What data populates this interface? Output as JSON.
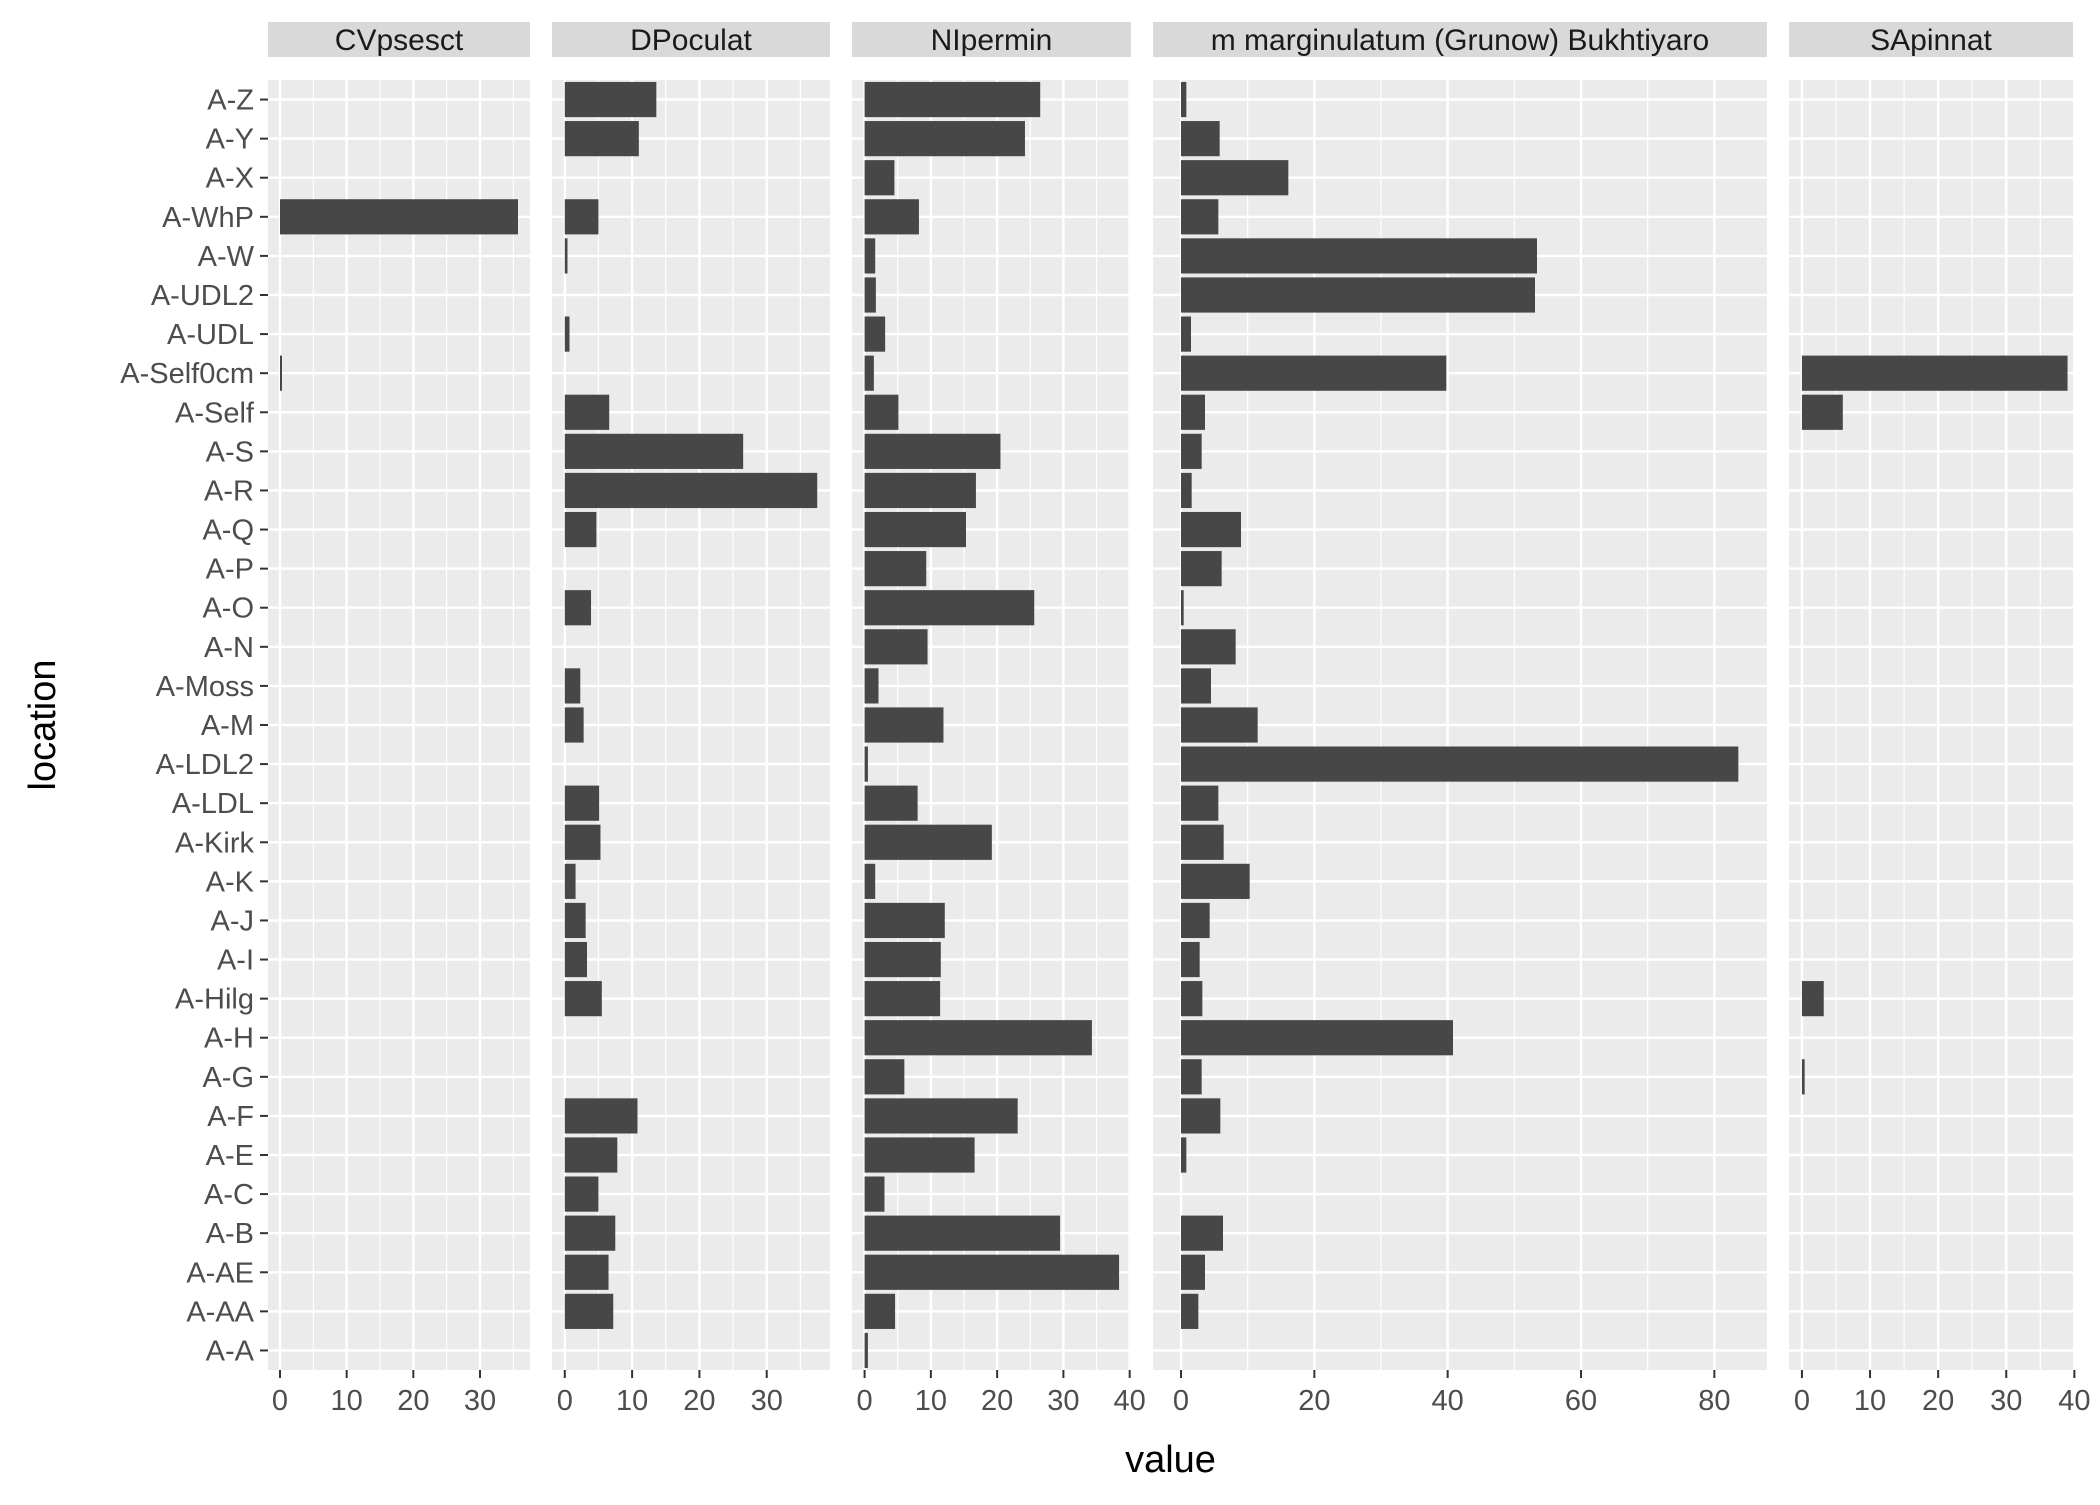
{
  "chart_data": {
    "type": "bar",
    "orientation": "horizontal",
    "xlabel": "value",
    "ylabel": "location",
    "categories": [
      "A-Z",
      "A-Y",
      "A-X",
      "A-WhP",
      "A-W",
      "A-UDL2",
      "A-UDL",
      "A-Self0cm",
      "A-Self",
      "A-S",
      "A-R",
      "A-Q",
      "A-P",
      "A-O",
      "A-N",
      "A-Moss",
      "A-M",
      "A-LDL2",
      "A-LDL",
      "A-Kirk",
      "A-K",
      "A-J",
      "A-I",
      "A-Hilg",
      "A-H",
      "A-G",
      "A-F",
      "A-E",
      "A-C",
      "A-B",
      "A-AE",
      "A-AA",
      "A-A"
    ],
    "grid": true,
    "colors": {
      "bar": "#474747",
      "panel_background": "#ebebeb",
      "grid_line": "#ffffff",
      "strip_background": "#d9d9d9",
      "text": "#4d4d4d",
      "axis_title": "#000000"
    },
    "panels": [
      {
        "strip": "CVpsesct",
        "xlim": [
          -1.8,
          37.5
        ],
        "ticks": [
          0,
          10,
          20,
          30
        ],
        "values": [
          null,
          null,
          null,
          35.7,
          null,
          null,
          null,
          0.3,
          null,
          null,
          null,
          null,
          null,
          null,
          null,
          null,
          null,
          null,
          null,
          null,
          null,
          null,
          null,
          null,
          null,
          null,
          null,
          null,
          null,
          null,
          null,
          null,
          null
        ]
      },
      {
        "strip": "DPoculat",
        "xlim": [
          -1.9,
          39.4
        ],
        "ticks": [
          0,
          10,
          20,
          30
        ],
        "values": [
          13.6,
          11.0,
          null,
          5.0,
          0.4,
          null,
          0.7,
          null,
          6.6,
          26.5,
          37.5,
          4.7,
          null,
          3.9,
          null,
          2.3,
          2.8,
          null,
          5.1,
          5.3,
          1.6,
          3.1,
          3.3,
          5.5,
          null,
          null,
          10.8,
          7.8,
          5.0,
          7.5,
          6.5,
          7.2,
          null
        ]
      },
      {
        "strip": "NIpermin",
        "xlim": [
          -1.9,
          40.2
        ],
        "ticks": [
          0,
          10,
          20,
          30,
          40
        ],
        "values": [
          26.5,
          24.2,
          4.5,
          8.2,
          1.6,
          1.7,
          3.1,
          1.4,
          5.1,
          20.5,
          16.8,
          15.3,
          9.3,
          25.6,
          9.5,
          2.1,
          11.9,
          0.5,
          8.0,
          19.2,
          1.6,
          12.1,
          11.5,
          11.4,
          34.3,
          6.0,
          23.1,
          16.6,
          3.0,
          29.5,
          38.4,
          4.6,
          0.5
        ]
      },
      {
        "strip": "m marginulatum (Grunow) Bukhtiyaro",
        "xlim": [
          -4.2,
          87.9
        ],
        "ticks": [
          0,
          20,
          40,
          60,
          80
        ],
        "values": [
          0.8,
          5.8,
          16.1,
          5.6,
          53.4,
          53.1,
          1.5,
          39.8,
          3.6,
          3.1,
          1.6,
          9.0,
          6.1,
          0.4,
          8.2,
          4.5,
          11.5,
          83.6,
          5.6,
          6.4,
          10.3,
          4.3,
          2.8,
          3.2,
          40.8,
          3.1,
          5.9,
          0.8,
          null,
          6.3,
          3.6,
          2.6,
          null
        ]
      },
      {
        "strip": "SApinnat",
        "xlim": [
          -1.9,
          39.8
        ],
        "ticks": [
          0,
          10,
          20,
          30,
          40
        ],
        "values": [
          null,
          null,
          null,
          null,
          null,
          null,
          null,
          39.0,
          6.0,
          null,
          null,
          null,
          null,
          null,
          null,
          null,
          null,
          null,
          null,
          null,
          null,
          null,
          null,
          3.2,
          null,
          0.4,
          null,
          null,
          null,
          null,
          null,
          null,
          null
        ]
      }
    ]
  }
}
